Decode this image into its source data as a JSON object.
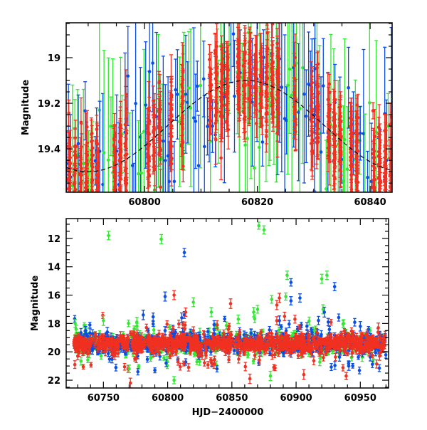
{
  "chart_data": [
    {
      "type": "scatter",
      "panel": "top",
      "title": "",
      "xlabel": "",
      "ylabel": "Magnitude",
      "xlim": [
        60786.1,
        60843.9
      ],
      "ylim": [
        19.59,
        18.847
      ],
      "y_inverted": true,
      "xticks": [
        60800,
        60820,
        60840
      ],
      "xtick_labels": [
        "60800",
        "60820",
        "60840"
      ],
      "yticks": [
        19,
        19.2,
        19.4
      ],
      "ytick_labels": [
        "19",
        "19.2",
        "19.4"
      ],
      "grid": false,
      "model_curve": {
        "style": "dashed",
        "color": "#000000",
        "mean": 19.3,
        "amplitude": 0.2,
        "peak_hjd": 60818,
        "period_days": 56
      },
      "series": [
        {
          "name": "green",
          "color": "#33e833",
          "band_center": 19.3,
          "band_scatter": 0.15,
          "typical_error": 0.25
        },
        {
          "name": "blue",
          "color": "#0a4ee8",
          "band_center": 19.3,
          "band_scatter": 0.15,
          "typical_error": 0.2
        },
        {
          "name": "red",
          "color": "#f03020",
          "band_center": 19.3,
          "band_scatter": 0.1,
          "typical_error": 0.06
        }
      ]
    },
    {
      "type": "scatter",
      "panel": "bottom",
      "title": "",
      "xlabel": "HJD−2400000",
      "ylabel": "Magnitude",
      "xlim": [
        60721,
        60972
      ],
      "ylim": [
        22.55,
        10.6
      ],
      "y_inverted": true,
      "xticks": [
        60750,
        60800,
        60850,
        60900,
        60950
      ],
      "xtick_labels": [
        "60750",
        "60800",
        "60850",
        "60900",
        "60950"
      ],
      "yticks": [
        12,
        14,
        16,
        18,
        20,
        22
      ],
      "ytick_labels": [
        "12",
        "14",
        "16",
        "18",
        "20",
        "22"
      ],
      "grid": false,
      "band": {
        "x_range": [
          60727,
          60970
        ],
        "center": 19.4,
        "scatter": 0.35
      },
      "series": [
        {
          "name": "green",
          "color": "#33e833",
          "outliers": [
            [
              60728,
              18.0
            ],
            [
              60750,
              17.8
            ],
            [
              60754,
              11.8
            ],
            [
              60770,
              21.2
            ],
            [
              60776,
              17.9
            ],
            [
              60795,
              12.05
            ],
            [
              60805,
              22.0
            ],
            [
              60820,
              16.5
            ],
            [
              60834,
              17.2
            ],
            [
              60855,
              17.7
            ],
            [
              60867,
              17.2
            ],
            [
              60870,
              17.0
            ],
            [
              60871,
              11.1
            ],
            [
              60875,
              11.4
            ],
            [
              60881,
              16.3
            ],
            [
              60893,
              14.6
            ],
            [
              60892,
              16.1
            ],
            [
              60920,
              14.85
            ],
            [
              60921,
              17.0
            ],
            [
              60924,
              14.6
            ],
            [
              60937,
              18.0
            ],
            [
              60880,
              21.7
            ]
          ]
        },
        {
          "name": "blue",
          "color": "#0a4ee8",
          "outliers": [
            [
              60736,
              18.5
            ],
            [
              60753,
              18.6
            ],
            [
              60781,
              17.4
            ],
            [
              60798,
              16.1
            ],
            [
              60798,
              18.5
            ],
            [
              60813,
              13.0
            ],
            [
              60811,
              17.6
            ],
            [
              60887,
              17.8
            ],
            [
              60896,
              15.1
            ],
            [
              60896,
              16.4
            ],
            [
              60903,
              16.2
            ],
            [
              60922,
              17.2
            ],
            [
              60925,
              17.9
            ],
            [
              60930,
              15.4
            ],
            [
              60941,
              21.0
            ],
            [
              60950,
              18.2
            ]
          ]
        },
        {
          "name": "red",
          "color": "#f03020",
          "outliers": [
            [
              60730,
              20.3
            ],
            [
              60771,
              22.2
            ],
            [
              60805,
              16.0
            ],
            [
              60814,
              17.2
            ],
            [
              60820,
              18.5
            ],
            [
              60849,
              16.6
            ],
            [
              60864,
              21.9
            ],
            [
              60885,
              16.7
            ],
            [
              60887,
              16.2
            ],
            [
              60885,
              17.8
            ],
            [
              60891,
              17.5
            ],
            [
              60906,
              21.6
            ],
            [
              60939,
              21.7
            ],
            [
              60964,
              18.3
            ],
            [
              60965,
              20.3
            ]
          ]
        }
      ]
    }
  ]
}
